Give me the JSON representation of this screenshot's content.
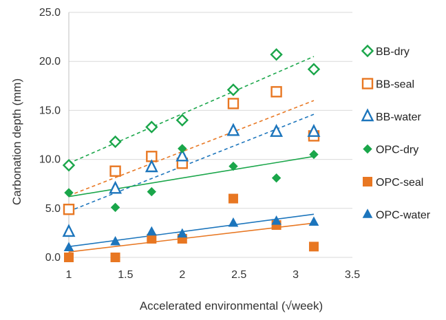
{
  "chart_data": {
    "type": "scatter",
    "title": "",
    "xlabel": "Accelerated environmental (√week)",
    "ylabel": "Carbonation depth (mm)",
    "xlim": [
      1,
      3.5
    ],
    "ylim": [
      0,
      25
    ],
    "x_ticks": [
      "1",
      "1.5",
      "2",
      "2.5",
      "3",
      "3.5"
    ],
    "y_ticks": [
      "0.0",
      "5.0",
      "10.0",
      "15.0",
      "20.0",
      "25.0"
    ],
    "grid": "horizontal",
    "legend_position": "right",
    "series": [
      {
        "name": "BB-dry",
        "marker": "diamond-open",
        "color": "#1aa64a",
        "trendline": "dashed",
        "trend": {
          "x": [
            1,
            3.16
          ],
          "y": [
            9.6,
            20.5
          ]
        },
        "points": [
          [
            1.0,
            9.4
          ],
          [
            1.41,
            11.8
          ],
          [
            1.73,
            13.3
          ],
          [
            2.0,
            14.0
          ],
          [
            2.45,
            17.1
          ],
          [
            2.83,
            20.7
          ],
          [
            3.16,
            19.2
          ]
        ]
      },
      {
        "name": "BB-seal",
        "marker": "square-open",
        "color": "#e87722",
        "trendline": "dashed",
        "trend": {
          "x": [
            1,
            3.16
          ],
          "y": [
            6.3,
            16.0
          ]
        },
        "points": [
          [
            1.0,
            4.9
          ],
          [
            1.41,
            8.8
          ],
          [
            1.73,
            10.3
          ],
          [
            2.0,
            9.6
          ],
          [
            2.45,
            15.7
          ],
          [
            2.83,
            16.9
          ],
          [
            3.16,
            12.4
          ]
        ]
      },
      {
        "name": "BB-water",
        "marker": "triangle-open",
        "color": "#1c75bc",
        "trendline": "dashed",
        "trend": {
          "x": [
            1,
            3.16
          ],
          "y": [
            4.7,
            14.6
          ]
        },
        "points": [
          [
            1.0,
            2.6
          ],
          [
            1.41,
            7.0
          ],
          [
            1.73,
            9.2
          ],
          [
            2.0,
            10.3
          ],
          [
            2.45,
            12.9
          ],
          [
            2.83,
            12.8
          ],
          [
            3.16,
            12.8
          ]
        ]
      },
      {
        "name": "OPC-dry",
        "marker": "diamond-filled",
        "color": "#1aa64a",
        "trendline": "solid",
        "trend": {
          "x": [
            1,
            3.16
          ],
          "y": [
            6.2,
            10.3
          ]
        },
        "points": [
          [
            1.0,
            6.6
          ],
          [
            1.41,
            5.1
          ],
          [
            1.73,
            6.7
          ],
          [
            2.0,
            11.1
          ],
          [
            2.45,
            9.3
          ],
          [
            2.83,
            8.1
          ],
          [
            3.16,
            10.5
          ]
        ]
      },
      {
        "name": "OPC-seal",
        "marker": "square-filled",
        "color": "#e87722",
        "trendline": "solid",
        "trend": {
          "x": [
            1,
            3.16
          ],
          "y": [
            0.55,
            3.5
          ]
        },
        "points": [
          [
            1.0,
            0.0
          ],
          [
            1.41,
            0.0
          ],
          [
            1.73,
            1.9
          ],
          [
            2.0,
            1.9
          ],
          [
            2.45,
            6.0
          ],
          [
            2.83,
            3.3
          ],
          [
            3.16,
            1.1
          ]
        ]
      },
      {
        "name": "OPC-water",
        "marker": "triangle-filled",
        "color": "#1c75bc",
        "trendline": "solid",
        "trend": {
          "x": [
            1,
            3.16
          ],
          "y": [
            1.1,
            4.4
          ]
        },
        "points": [
          [
            1.0,
            1.0
          ],
          [
            1.41,
            1.6
          ],
          [
            1.73,
            2.6
          ],
          [
            2.0,
            2.4
          ],
          [
            2.45,
            3.5
          ],
          [
            2.83,
            3.7
          ],
          [
            3.16,
            3.6
          ]
        ]
      }
    ]
  }
}
